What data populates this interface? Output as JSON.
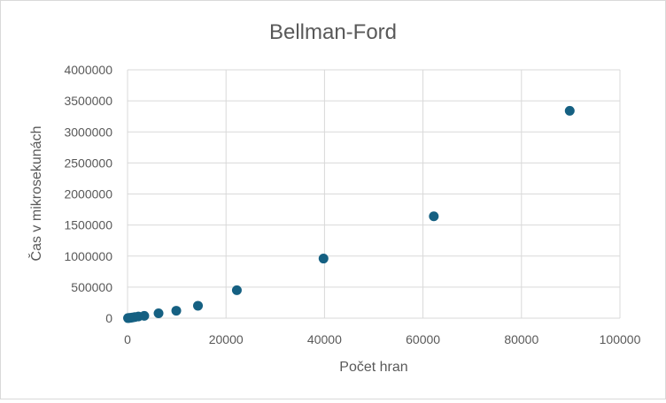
{
  "chart_data": {
    "type": "scatter",
    "title": "Bellman-Ford",
    "xlabel": "Počet hran",
    "ylabel": "Čas v mikrosekunách",
    "xlim": [
      0,
      100000
    ],
    "ylim": [
      0,
      4000000
    ],
    "x_ticks": [
      "0",
      "20000",
      "40000",
      "60000",
      "80000",
      "100000"
    ],
    "y_ticks": [
      "0",
      "500000",
      "1000000",
      "1500000",
      "2000000",
      "2500000",
      "3000000",
      "3500000",
      "4000000"
    ],
    "grid": true,
    "legend": "none",
    "marker_color": "#156082",
    "points": [
      {
        "x": 100,
        "y": 1000
      },
      {
        "x": 300,
        "y": 3000
      },
      {
        "x": 600,
        "y": 6000
      },
      {
        "x": 1000,
        "y": 11000
      },
      {
        "x": 1500,
        "y": 18000
      },
      {
        "x": 2200,
        "y": 27000
      },
      {
        "x": 3400,
        "y": 38000
      },
      {
        "x": 6300,
        "y": 78000
      },
      {
        "x": 9900,
        "y": 120000
      },
      {
        "x": 14300,
        "y": 200000
      },
      {
        "x": 22200,
        "y": 450000
      },
      {
        "x": 39800,
        "y": 960000
      },
      {
        "x": 62200,
        "y": 1640000
      },
      {
        "x": 89800,
        "y": 3340000
      }
    ]
  }
}
